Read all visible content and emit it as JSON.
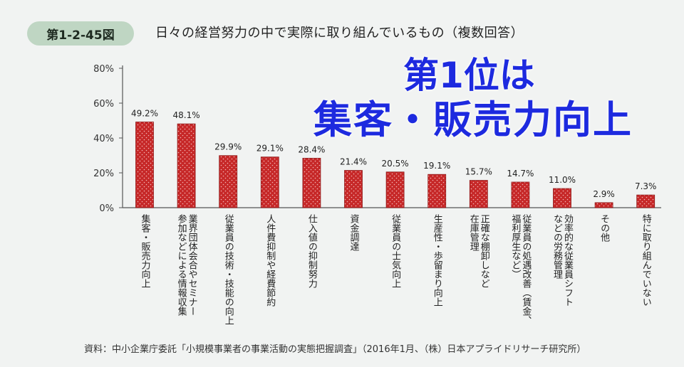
{
  "figure": {
    "label": "第1-2-45図",
    "title": "日々の経営努力の中で実際に取り組んでいるもの（複数回答）"
  },
  "callout": {
    "line1": "第1位は",
    "line2": "集客・販売力向上"
  },
  "source": "資料：中小企業庁委託「小規模事業者の事業活動の実態把握調査」（2016年1月、（株）日本アプライドリサーチ研究所）",
  "colors": {
    "bar_fill": "#c62828",
    "bar_dot": "#f4b6b6",
    "axis": "#555555",
    "callout": "#1d2adf"
  },
  "chart_data": {
    "type": "bar",
    "ylim": [
      0,
      80
    ],
    "yticks": [
      "0%",
      "20%",
      "40%",
      "60%",
      "80%"
    ],
    "ytick_values": [
      0,
      20,
      40,
      60,
      80
    ],
    "values": [
      49.2,
      48.1,
      29.9,
      29.1,
      28.4,
      21.4,
      20.5,
      19.1,
      15.7,
      14.7,
      11.0,
      2.9,
      7.3
    ],
    "value_labels": [
      "49.2%",
      "48.1%",
      "29.9%",
      "29.1%",
      "28.4%",
      "21.4%",
      "20.5%",
      "19.1%",
      "15.7%",
      "14.7%",
      "11.0%",
      "2.9%",
      "7.3%"
    ],
    "categories": [
      [
        "集客・販売力向上"
      ],
      [
        "業界団体会合やセミナー",
        "参加などによる情報収集"
      ],
      [
        "従業員の技術・技能の向上"
      ],
      [
        "人件費抑制や経費節約"
      ],
      [
        "仕入値の抑制努力"
      ],
      [
        "資金調達"
      ],
      [
        "従業員の士気向上"
      ],
      [
        "生産性・歩留まり向上"
      ],
      [
        "正確な棚卸しなど",
        "在庫管理"
      ],
      [
        "従業員の処遇改善（賃金、",
        "福利厚生など）"
      ],
      [
        "効率的な従業員シフト",
        "などの労務管理"
      ],
      [
        "その他"
      ],
      [
        "特に取り組んでいない"
      ]
    ]
  }
}
